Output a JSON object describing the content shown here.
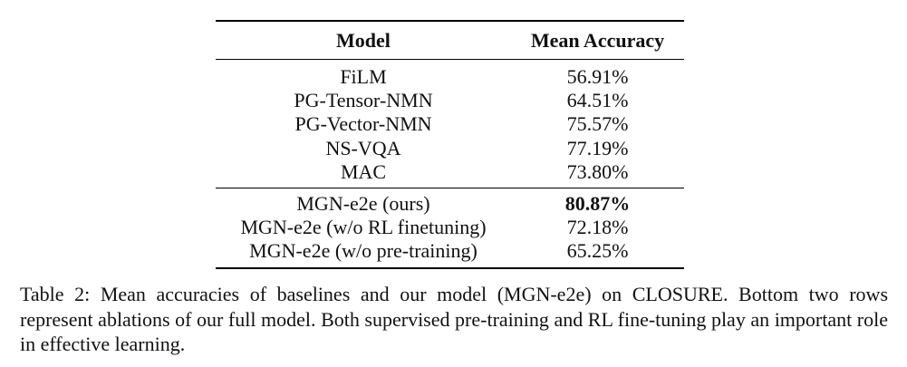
{
  "table": {
    "headers": {
      "model": "Model",
      "accuracy": "Mean Accuracy"
    },
    "baselines": [
      {
        "model": "FiLM",
        "accuracy": "56.91%"
      },
      {
        "model": "PG-Tensor-NMN",
        "accuracy": "64.51%"
      },
      {
        "model": "PG-Vector-NMN",
        "accuracy": "75.57%"
      },
      {
        "model": "NS-VQA",
        "accuracy": "77.19%"
      },
      {
        "model": "MAC",
        "accuracy": "73.80%"
      }
    ],
    "ours": [
      {
        "model": "MGN-e2e (ours)",
        "accuracy": "80.87%"
      },
      {
        "model": "MGN-e2e (w/o RL finetuning)",
        "accuracy": "72.18%"
      },
      {
        "model": "MGN-e2e (w/o pre-training)",
        "accuracy": "65.25%"
      }
    ]
  },
  "caption": {
    "label": "Table 2:",
    "text": "Mean accuracies of baselines and our model (MGN-e2e) on CLOSURE. Bottom two rows represent ablations of our full model.  Both supervised pre-training and RL fine-tuning play an important role in effective learning."
  }
}
